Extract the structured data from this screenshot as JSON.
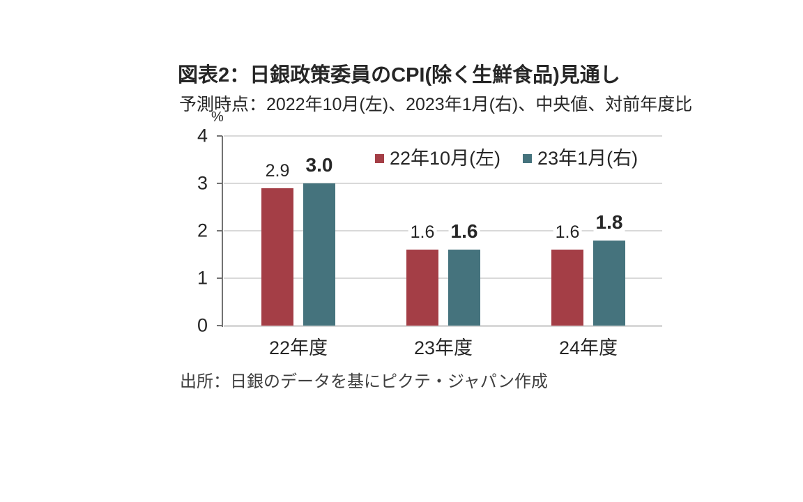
{
  "header": {
    "title": "図表2：日銀政策委員のCPI(除く生鮮食品)見通し",
    "subtitle": "予測時点：2022年10月(左)、2023年1月(右)、中央値、対前年度比"
  },
  "source": "出所：日銀のデータを基にピクテ・ジャパン作成",
  "colors": {
    "series_red": "#A43E46",
    "series_teal": "#45737D",
    "grid": "#d9d9d9",
    "axis": "#737373",
    "text": "#262626"
  },
  "chart_data": {
    "type": "bar",
    "title": "図表2：日銀政策委員のCPI(除く生鮮食品)見通し",
    "subtitle": "予測時点：2022年10月(左)、2023年1月(右)、中央値、対前年度比",
    "unit_label": "%",
    "categories": [
      "22年度",
      "23年度",
      "24年度"
    ],
    "series": [
      {
        "name": "22年10月(左)",
        "color": "#A43E46",
        "values": [
          2.9,
          1.6,
          1.6
        ],
        "label_bold": false
      },
      {
        "name": "23年1月(右)",
        "color": "#45737D",
        "values": [
          3.0,
          1.6,
          1.8
        ],
        "label_bold": true
      }
    ],
    "ylim": [
      0,
      4
    ],
    "yticks": [
      0,
      1,
      2,
      3,
      4
    ],
    "grid": true,
    "legend_position": "top-inside",
    "value_labels": true,
    "source": "出所：日銀のデータを基にピクテ・ジャパン作成"
  }
}
